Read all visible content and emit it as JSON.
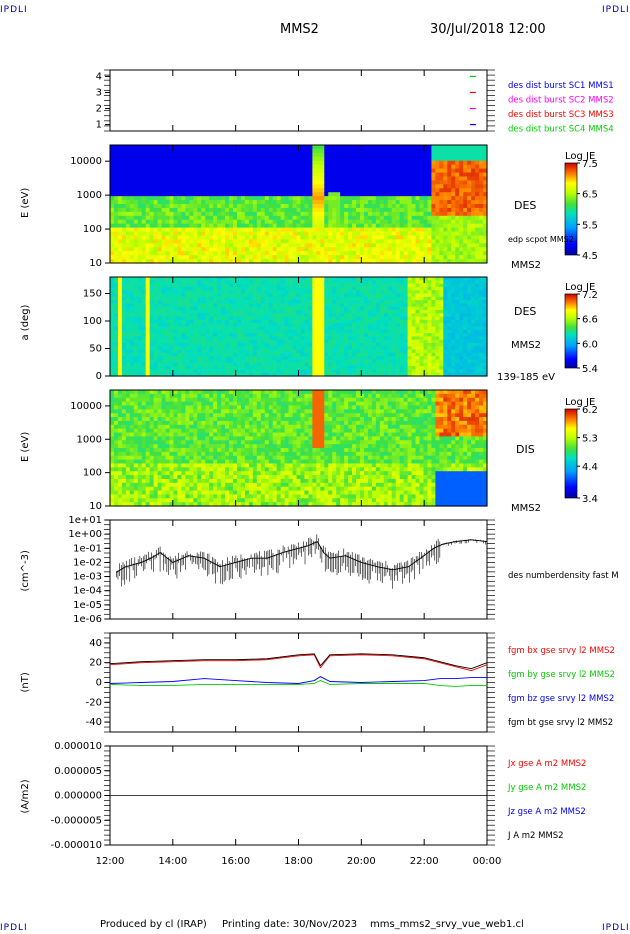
{
  "header": {
    "logo_left": "IPDLI",
    "logo_right": "IPDLI",
    "spacecraft": "MMS2",
    "date": "30/Jul/2018 12:00"
  },
  "footer": {
    "produced_by": "Produced by cl (IRAP)",
    "printing_date": "Printing date: 30/Nov/2023",
    "filename": "mms_mms2_srvy_vue_web1.cl",
    "logo_left": "IPDLI",
    "logo_right": "IPDLI"
  },
  "chart_data": [
    {
      "type": "scatter",
      "panel": "burst-availability",
      "ytick_labels": [
        "1",
        "2",
        "3",
        "4"
      ],
      "series": [
        {
          "name": "des dist burst SC1 MMS1",
          "color": "#0000ff",
          "y": 1,
          "x": [
            23.55
          ]
        },
        {
          "name": "des dist burst SC2 MMS2",
          "color": "#ff00ff",
          "y": 2,
          "x": [
            23.55
          ]
        },
        {
          "name": "des dist burst SC3 MMS3",
          "color": "#ff0000",
          "y": 3,
          "x": [
            23.55
          ]
        },
        {
          "name": "des dist burst SC4 MMS4",
          "color": "#00d000",
          "y": 4,
          "x": [
            23.55
          ]
        }
      ]
    },
    {
      "type": "heatmap",
      "panel": "des-energy",
      "ylabel": "E (eV)",
      "ytick_labels": [
        "10",
        "100",
        "1000",
        "10000"
      ],
      "yscale": "log",
      "ylim": [
        10,
        30000
      ],
      "colorbar": {
        "label": "Log JE",
        "min": 4.5,
        "max": 7.5,
        "tick_labels": [
          "4.5",
          "5.5",
          "6.5",
          "7.5"
        ]
      },
      "instrument": "DES",
      "spacecraft_label": "MMS2",
      "overlay_label": "edp scpot MMS2"
    },
    {
      "type": "heatmap",
      "panel": "des-pitch",
      "ylabel": "a (deg)",
      "ytick_labels": [
        "0",
        "50",
        "100",
        "150"
      ],
      "ylim": [
        0,
        180
      ],
      "colorbar": {
        "label": "Log JE",
        "min": 5.4,
        "max": 7.2,
        "tick_labels": [
          "5.4",
          "6.0",
          "6.6",
          "7.2"
        ]
      },
      "instrument": "DES",
      "spacecraft_label": "MMS2",
      "energy_range": "139-185 eV"
    },
    {
      "type": "heatmap",
      "panel": "dis-energy",
      "ylabel": "E (eV)",
      "ytick_labels": [
        "10",
        "100",
        "1000",
        "10000"
      ],
      "yscale": "log",
      "ylim": [
        10,
        30000
      ],
      "colorbar": {
        "label": "Log JE",
        "min": 3.4,
        "max": 6.2,
        "tick_labels": [
          "3.4",
          "4.4",
          "5.3",
          "6.2"
        ]
      },
      "instrument": "DIS",
      "spacecraft_label": "MMS2"
    },
    {
      "type": "line",
      "panel": "density",
      "ylabel": "(cm^-3)",
      "yscale": "log",
      "ylim": [
        1e-06,
        10
      ],
      "ytick_labels": [
        "1e-06",
        "1e-05",
        "1e-04",
        "1e-03",
        "1e-02",
        "1e-01",
        "1e+00",
        "1e+01"
      ],
      "series": [
        {
          "name": "des numberdensity fast M",
          "color": "#000000",
          "x": [
            12.2,
            12.5,
            13.0,
            13.3,
            13.6,
            14.0,
            14.5,
            15.0,
            15.5,
            16.0,
            16.5,
            17.0,
            17.5,
            18.0,
            18.3,
            18.6,
            18.8,
            19.0,
            19.5,
            20.0,
            20.5,
            21.0,
            21.5,
            22.0,
            22.3,
            22.6,
            23.0,
            23.5,
            24.0
          ],
          "y": [
            0.002,
            0.005,
            0.01,
            0.02,
            0.05,
            0.01,
            0.03,
            0.02,
            0.005,
            0.01,
            0.02,
            0.02,
            0.05,
            0.1,
            0.15,
            0.3,
            0.05,
            0.02,
            0.03,
            0.01,
            0.005,
            0.003,
            0.005,
            0.03,
            0.1,
            0.2,
            0.3,
            0.4,
            0.3
          ]
        }
      ]
    },
    {
      "type": "line",
      "panel": "magnetic-field",
      "ylabel": "(nT)",
      "ylim": [
        -50,
        50
      ],
      "ytick_labels": [
        "-40",
        "-20",
        "0",
        "20",
        "40"
      ],
      "series": [
        {
          "name": "fgm bx gse srvy l2 MMS2",
          "color": "#ff0000",
          "x": [
            12.0,
            13.0,
            14.0,
            15.0,
            16.0,
            17.0,
            18.0,
            18.5,
            18.7,
            19.0,
            20.0,
            21.0,
            22.0,
            22.5,
            23.0,
            23.5,
            24.0
          ],
          "y": [
            18,
            20,
            21,
            22,
            22,
            23,
            27,
            28,
            15,
            27,
            28,
            27,
            24,
            20,
            16,
            12,
            18
          ]
        },
        {
          "name": "fgm by gse srvy l2 MMS2",
          "color": "#00cc00",
          "x": [
            12.0,
            13.0,
            14.0,
            15.0,
            16.0,
            17.0,
            18.0,
            18.5,
            18.7,
            19.0,
            20.0,
            21.0,
            22.0,
            22.5,
            23.0,
            23.5,
            24.0
          ],
          "y": [
            -2,
            -3,
            -3,
            -2,
            -2,
            -2,
            -2,
            -1,
            2,
            -2,
            -1,
            -1,
            -1,
            -3,
            -4,
            -3,
            -3
          ]
        },
        {
          "name": "fgm bz gse srvy l2 MMS2",
          "color": "#0000ff",
          "x": [
            12.0,
            13.0,
            14.0,
            15.0,
            16.0,
            17.0,
            18.0,
            18.5,
            18.7,
            19.0,
            20.0,
            21.0,
            22.0,
            22.5,
            23.0,
            23.5,
            24.0
          ],
          "y": [
            -1,
            0,
            1,
            4,
            2,
            0,
            -1,
            2,
            6,
            1,
            0,
            1,
            2,
            4,
            4,
            5,
            5
          ]
        },
        {
          "name": "fgm bt gse srvy l2 MMS2",
          "color": "#000000",
          "x": [
            12.0,
            13.0,
            14.0,
            15.0,
            16.0,
            17.0,
            18.0,
            18.5,
            18.7,
            19.0,
            20.0,
            21.0,
            22.0,
            22.5,
            23.0,
            23.5,
            24.0
          ],
          "y": [
            19,
            21,
            22,
            23,
            23,
            24,
            28,
            29,
            17,
            28,
            29,
            28,
            25,
            21,
            17,
            14,
            20
          ]
        }
      ]
    },
    {
      "type": "line",
      "panel": "current-density",
      "ylabel": "(A/m2)",
      "ylim": [
        -1e-05,
        1e-05
      ],
      "ytick_labels": [
        "-0.000010",
        "-0.000005",
        "0.000000",
        "0.000005",
        "0.000010"
      ],
      "xtick_labels": [
        "12:00",
        "14:00",
        "16:00",
        "18:00",
        "20:00",
        "22:00",
        "00:00"
      ],
      "series": [
        {
          "name": "Jx gse A m2 MMS2",
          "color": "#ff0000"
        },
        {
          "name": "Jy gse A m2 MMS2",
          "color": "#00cc00"
        },
        {
          "name": "Jz gse A m2 MMS2",
          "color": "#0000ff"
        },
        {
          "name": "J A m2 MMS2",
          "color": "#000000"
        }
      ]
    }
  ]
}
